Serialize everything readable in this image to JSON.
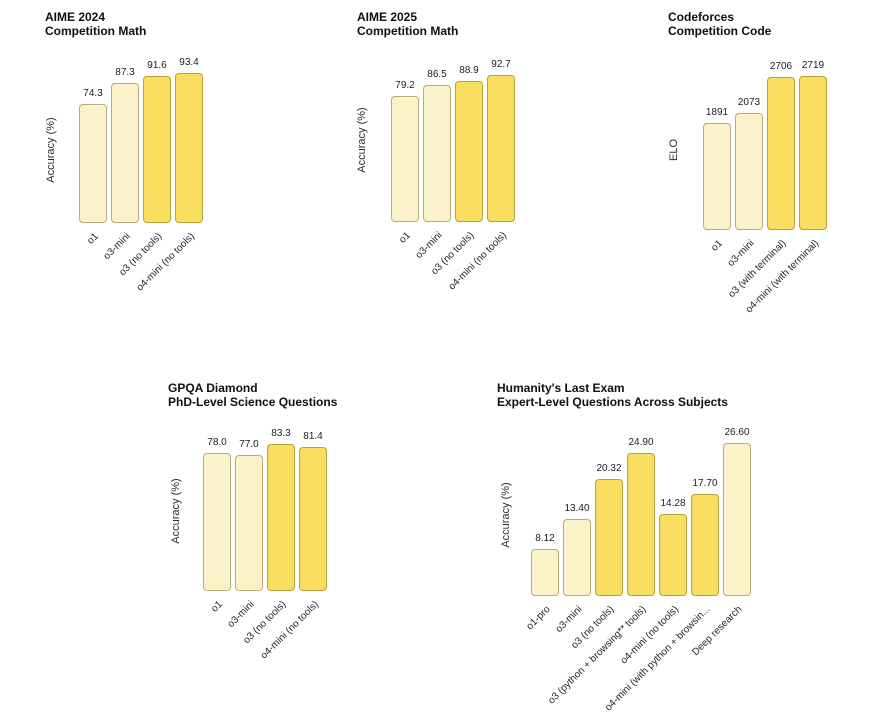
{
  "page": {
    "background": "#ffffff",
    "description_labels": {
      "accuracy_axis": "Accuracy (%)",
      "elo_axis": "ELO"
    }
  },
  "palette": {
    "bar_light": "#FBF2CA",
    "bar_dark": "#FADE5F",
    "bar_border": "rgba(94,77,16,0.42)",
    "title_text": "#0f0f0f",
    "label_text": "#1c1c1c"
  },
  "chart_data": [
    {
      "type": "bar",
      "title": "AIME 2024",
      "subtitle": "Competition Math",
      "ylabel": "Accuracy (%)",
      "xlabel": "",
      "categories": [
        "o1",
        "o3-mini",
        "o3 (no tools)",
        "o4-mini (no tools)"
      ],
      "values": [
        74.3,
        87.3,
        91.6,
        93.4
      ],
      "value_labels": [
        "74.3",
        "87.3",
        "91.6",
        "93.4"
      ],
      "emphasis": [
        "light",
        "light",
        "dark",
        "dark"
      ],
      "ylim": [
        0,
        93.4
      ],
      "grid": false,
      "legend": "none"
    },
    {
      "type": "bar",
      "title": "AIME 2025",
      "subtitle": "Competition Math",
      "ylabel": "Accuracy (%)",
      "xlabel": "",
      "categories": [
        "o1",
        "o3-mini",
        "o3 (no tools)",
        "o4-mini (no tools)"
      ],
      "values": [
        79.2,
        86.5,
        88.9,
        92.7
      ],
      "value_labels": [
        "79.2",
        "86.5",
        "88.9",
        "92.7"
      ],
      "emphasis": [
        "light",
        "light",
        "dark",
        "dark"
      ],
      "ylim": [
        0,
        92.7
      ],
      "grid": false,
      "legend": "none"
    },
    {
      "type": "bar",
      "title": "Codeforces",
      "subtitle": "Competition Code",
      "ylabel": "ELO",
      "xlabel": "",
      "categories": [
        "o1",
        "o3-mini",
        "o3 (with terminal)",
        "o4-mini (with terminal)"
      ],
      "values": [
        1891,
        2073,
        2706,
        2719
      ],
      "value_labels": [
        "1891",
        "2073",
        "2706",
        "2719"
      ],
      "emphasis": [
        "light",
        "light",
        "dark",
        "dark"
      ],
      "ylim": [
        0,
        2719
      ],
      "grid": false,
      "legend": "none"
    },
    {
      "type": "bar",
      "title": "GPQA Diamond",
      "subtitle": "PhD-Level Science Questions",
      "ylabel": "Accuracy (%)",
      "xlabel": "",
      "categories": [
        "o1",
        "o3-mini",
        "o3 (no tools)",
        "o4-mini (no tools)"
      ],
      "values": [
        78.0,
        77.0,
        83.3,
        81.4
      ],
      "value_labels": [
        "78.0",
        "77.0",
        "83.3",
        "81.4"
      ],
      "emphasis": [
        "light",
        "light",
        "dark",
        "dark"
      ],
      "ylim": [
        0,
        83.3
      ],
      "grid": false,
      "legend": "none"
    },
    {
      "type": "bar",
      "title": "Humanity's Last Exam",
      "subtitle": "Expert-Level Questions Across Subjects",
      "ylabel": "Accuracy (%)",
      "xlabel": "",
      "categories": [
        "o1-pro",
        "o3-mini",
        "o3 (no tools)",
        "o3 (python + browsing** tools)",
        "o4-mini (no tools)",
        "o4-mini (with python + browsin...",
        "Deep research"
      ],
      "values": [
        8.12,
        13.4,
        20.32,
        24.9,
        14.28,
        17.7,
        26.6
      ],
      "value_labels": [
        "8.12",
        "13.40",
        "20.32",
        "24.90",
        "14.28",
        "17.70",
        "26.60"
      ],
      "emphasis": [
        "light",
        "light",
        "dark",
        "dark",
        "dark",
        "dark",
        "light"
      ],
      "ylim": [
        0,
        26.6
      ],
      "grid": false,
      "legend": "none"
    }
  ]
}
